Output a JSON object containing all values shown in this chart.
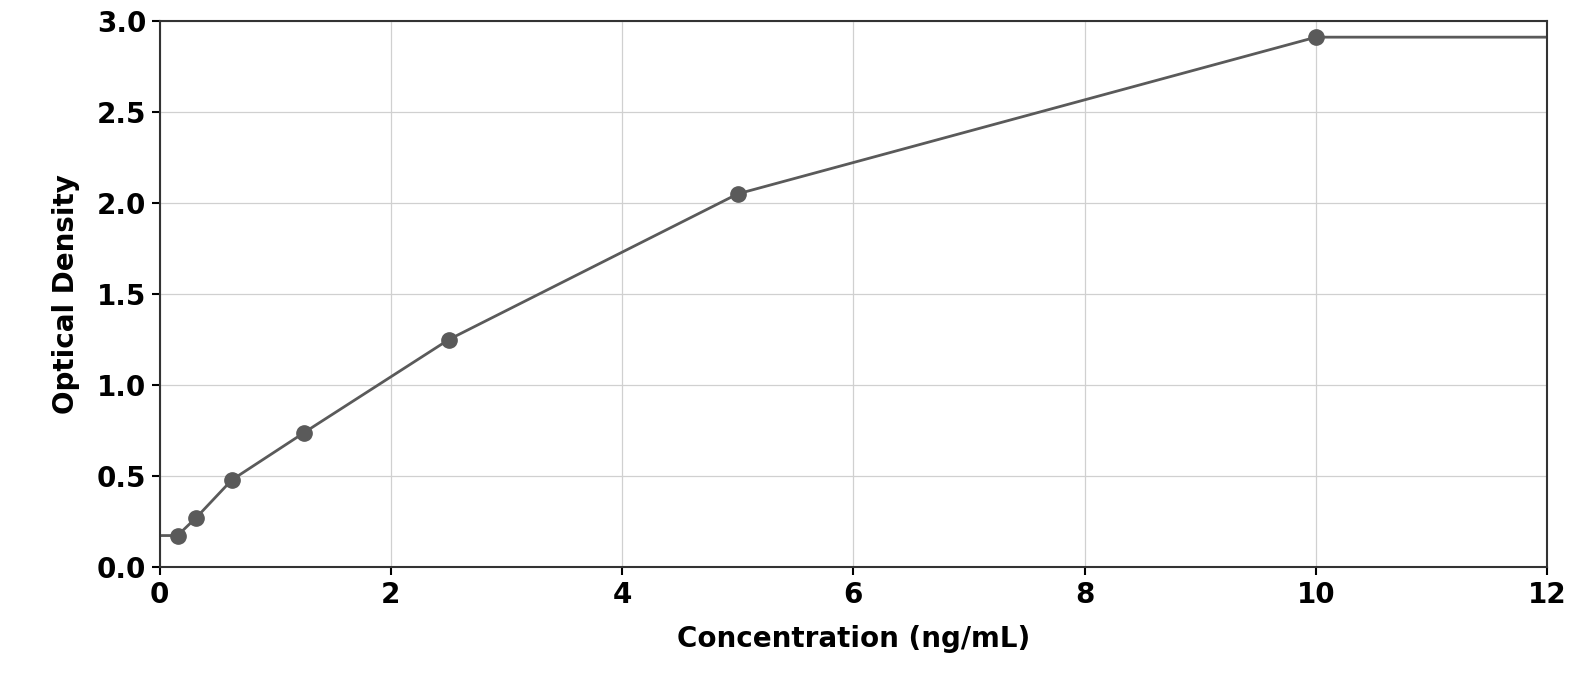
{
  "x_data": [
    0.156,
    0.313,
    0.625,
    1.25,
    2.5,
    5.0,
    10.0
  ],
  "y_data": [
    0.175,
    0.27,
    0.48,
    0.74,
    1.25,
    2.05,
    2.91
  ],
  "xlabel": "Concentration (ng/mL)",
  "ylabel": "Optical Density",
  "xlim": [
    0,
    12
  ],
  "ylim": [
    0,
    3
  ],
  "xticks": [
    0,
    2,
    4,
    6,
    8,
    10,
    12
  ],
  "yticks": [
    0,
    0.5,
    1.0,
    1.5,
    2.0,
    2.5,
    3.0
  ],
  "marker_color": "#5a5a5a",
  "line_color": "#5a5a5a",
  "marker_size": 11,
  "line_width": 2.0,
  "grid_color": "#d0d0d0",
  "background_color": "#ffffff",
  "outer_background": "#ffffff",
  "xlabel_fontsize": 20,
  "ylabel_fontsize": 20,
  "tick_fontsize": 20,
  "xlabel_fontweight": "bold",
  "ylabel_fontweight": "bold",
  "tick_fontweight": "bold"
}
